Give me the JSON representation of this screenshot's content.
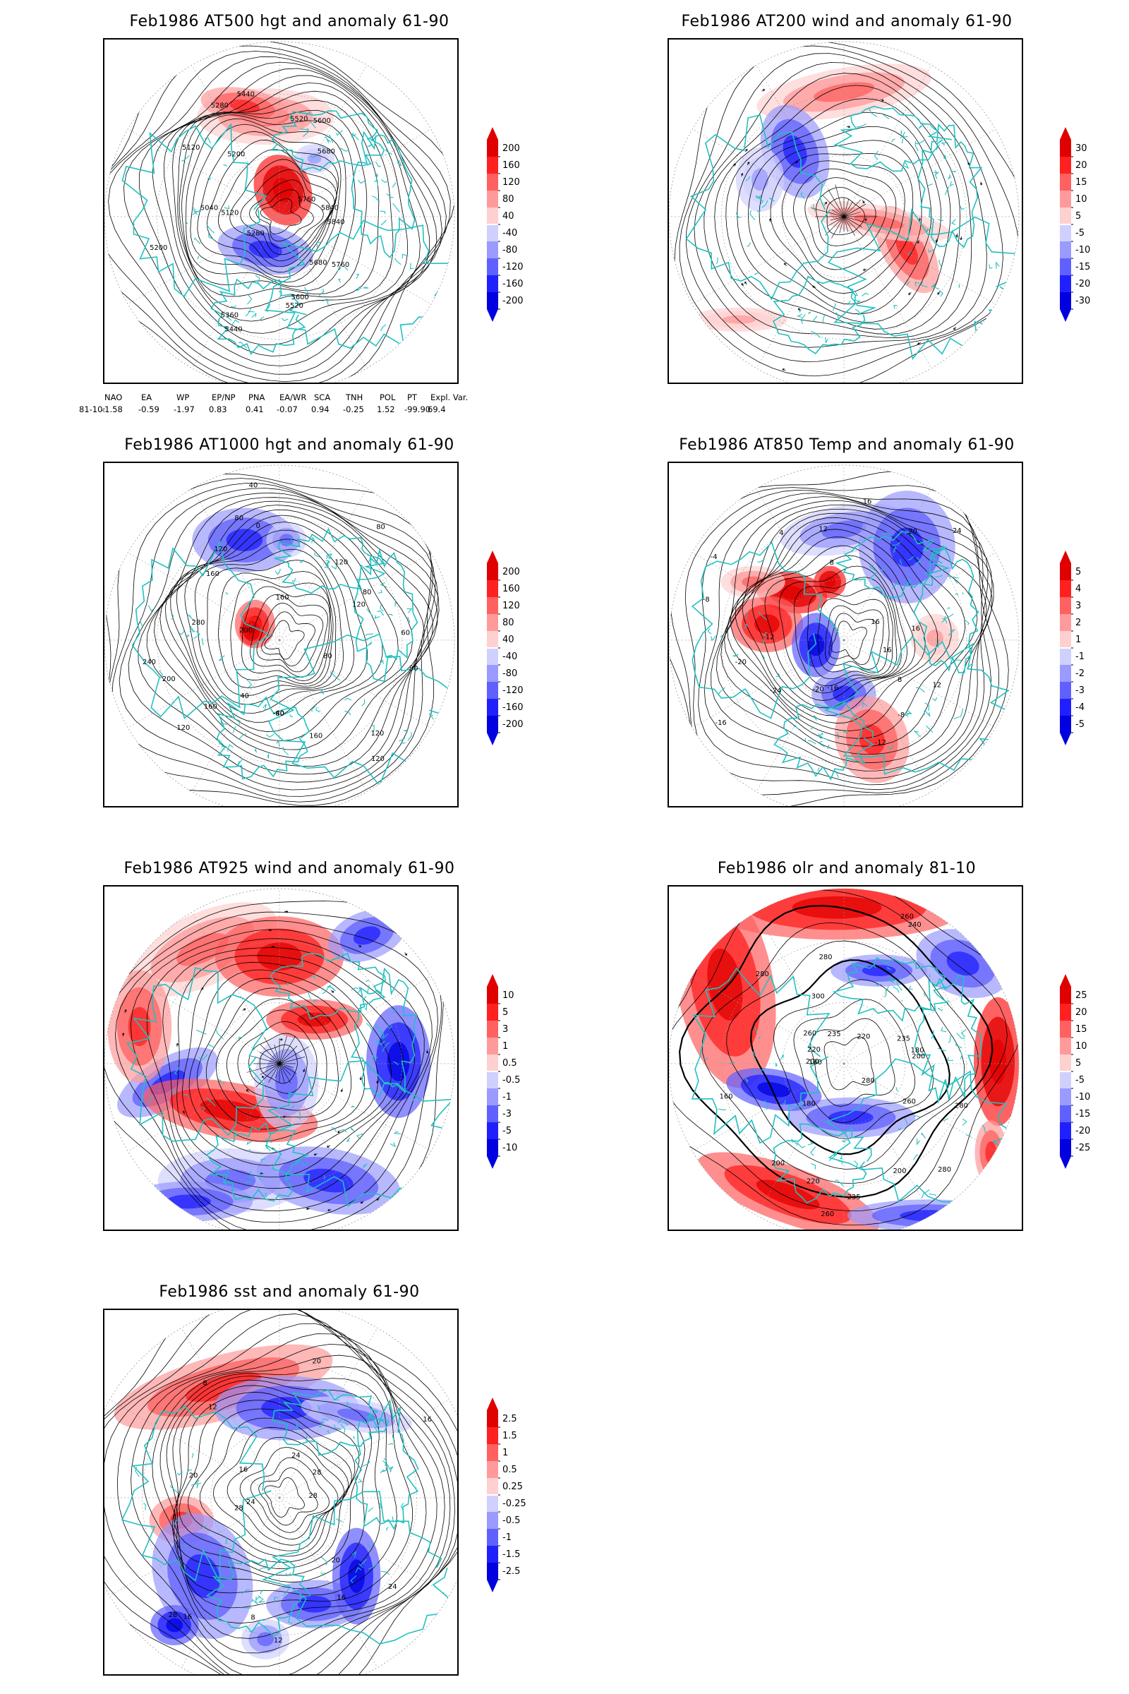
{
  "panels": [
    {
      "id": "p500",
      "title": "Feb1986 AT500 hgt and anomaly 61-90",
      "colorbar": [
        "200",
        "160",
        "120",
        "80",
        "40",
        "-40",
        "-80",
        "-120",
        "-160",
        "-200"
      ],
      "contour_labels": [
        "5840",
        "5760",
        "5680",
        "5600",
        "5520",
        "5440",
        "5360",
        "5280",
        "5200",
        "5120",
        "5040",
        "5120",
        "5200",
        "5280",
        "5440",
        "5520",
        "5600",
        "5680",
        "5760",
        "5840"
      ]
    },
    {
      "id": "p200",
      "title": "Feb1986 AT200 wind and anomaly 61-90",
      "colorbar": [
        "30",
        "20",
        "15",
        "10",
        "5",
        "-5",
        "-10",
        "-15",
        "-20",
        "-30"
      ],
      "contour_labels": []
    },
    {
      "id": "p1000",
      "title": "Feb1986 AT1000 hgt and anomaly 61-90",
      "colorbar": [
        "200",
        "160",
        "120",
        "80",
        "40",
        "-40",
        "-80",
        "-120",
        "-160",
        "-200"
      ],
      "contour_labels": [
        "80",
        "80",
        "120",
        "120",
        "160",
        "-40",
        "-80",
        "40",
        "160",
        "120",
        "200",
        "240",
        "280",
        "200",
        "160",
        "120",
        "80",
        "40",
        "0",
        "160",
        "120",
        "80",
        "120",
        "80",
        "60"
      ]
    },
    {
      "id": "p850",
      "title": "Feb1986 AT850 Temp and anomaly 61-90",
      "colorbar": [
        "5",
        "4",
        "3",
        "2",
        "1",
        "-1",
        "-2",
        "-3",
        "-4",
        "-5"
      ],
      "contour_labels": [
        "16",
        "12",
        "8",
        "-8",
        "-12",
        "-16",
        "-20",
        "-24",
        "-16",
        "-20",
        "-12",
        "-8",
        "-4",
        "4",
        "8",
        "12",
        "16",
        "20",
        "24",
        "16",
        "16"
      ]
    },
    {
      "id": "p925",
      "title": "Feb1986 AT925 wind and anomaly 61-90",
      "colorbar": [
        "10",
        "5",
        "3",
        "1",
        "0.5",
        "-0.5",
        "-1",
        "-3",
        "-5",
        "-10"
      ],
      "contour_labels": []
    },
    {
      "id": "polr",
      "title": "Feb1986 olr and anomaly 81-10",
      "colorbar": [
        "25",
        "20",
        "15",
        "10",
        "5",
        "-5",
        "-10",
        "-15",
        "-20",
        "-25"
      ],
      "contour_labels": [
        "280",
        "260",
        "280",
        "280",
        "200",
        "235",
        "260",
        "220",
        "200",
        "180",
        "160",
        "200",
        "180",
        "220",
        "260",
        "280",
        "235",
        "300",
        "280",
        "260",
        "240",
        "220",
        "235",
        "180",
        "200"
      ]
    },
    {
      "id": "psst",
      "title": "Feb1986 sst and anomaly 61-90",
      "colorbar": [
        "2.5",
        "1.5",
        "1",
        "0.5",
        "0.25",
        "-0.25",
        "-0.5",
        "-1",
        "-1.5",
        "-2.5"
      ],
      "contour_labels": [
        "28",
        "24",
        "20",
        "16",
        "12",
        "8",
        "16",
        "28",
        "28",
        "24",
        "20",
        "16",
        "12",
        "8",
        "4",
        "20",
        "24",
        "28",
        "16",
        "28"
      ]
    }
  ],
  "index_table": {
    "headers": [
      "NAO",
      "EA",
      "WP",
      "EP/NP",
      "PNA",
      "EA/WR",
      "SCA",
      "TNH",
      "POL",
      "PT",
      "Expl. Var."
    ],
    "row_label": "81-10:",
    "values": [
      "-1.58",
      "-0.59",
      "-1.97",
      "0.83",
      "0.41",
      "-0.07",
      "0.94",
      "-0.25",
      "1.52",
      "-99.90",
      "69.4"
    ]
  },
  "colors": {
    "land_outline": "#20c0c0",
    "contour": "#000000",
    "grid": "#999999",
    "colorbar_scale": [
      "#e00000",
      "#ff2020",
      "#ff6060",
      "#ff9a9a",
      "#ffd0d0",
      "#ffffff",
      "#d0d0ff",
      "#9a9aff",
      "#6060ff",
      "#2020ff",
      "#0000e0"
    ]
  }
}
